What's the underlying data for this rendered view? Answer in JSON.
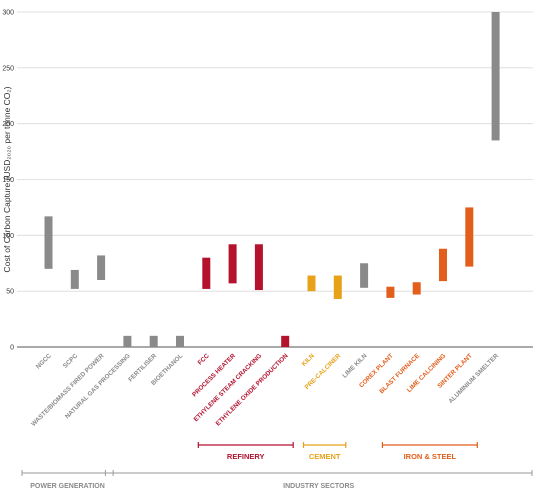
{
  "chart_data": {
    "type": "range-bar",
    "ylabel": "Cost of Carbon Capture (USD₂₀₂₀ per tonne CO₂)",
    "ylim": [
      0,
      300
    ],
    "yticks": [
      0,
      50,
      100,
      150,
      200,
      250,
      300
    ],
    "grid": true,
    "categories": [
      {
        "label": "NGCC",
        "low": 70,
        "high": 117,
        "color": "#8a8a8a"
      },
      {
        "label": "SCPC",
        "low": 52,
        "high": 69,
        "color": "#8a8a8a"
      },
      {
        "label": "WASTE/BIOMASS FIRED POWER",
        "low": 60,
        "high": 82,
        "color": "#8a8a8a"
      },
      {
        "label": "NATURAL GAS PROCESSING",
        "low": 0,
        "high": 10,
        "color": "#8a8a8a"
      },
      {
        "label": "FERTILISER",
        "low": 0,
        "high": 10,
        "color": "#8a8a8a"
      },
      {
        "label": "BIOETHANOL",
        "low": 0,
        "high": 10,
        "color": "#8a8a8a"
      },
      {
        "label": "FCC",
        "low": 52,
        "high": 80,
        "color": "#b5122e"
      },
      {
        "label": "PROCESS HEATER",
        "low": 57,
        "high": 92,
        "color": "#b5122e"
      },
      {
        "label": "ETHYLENE STEAM CRACKING",
        "low": 51,
        "high": 92,
        "color": "#b5122e"
      },
      {
        "label": "ETHYLENE OXIDE PRODUCTION",
        "low": 0,
        "high": 10,
        "color": "#b5122e"
      },
      {
        "label": "KILN",
        "low": 50,
        "high": 64,
        "color": "#e8a21a"
      },
      {
        "label": "PRE-CALCINER",
        "low": 43,
        "high": 64,
        "color": "#e8a21a"
      },
      {
        "label": "LIME KILN",
        "low": 53,
        "high": 75,
        "color": "#8a8a8a"
      },
      {
        "label": "COREX PLANT",
        "low": 44,
        "high": 54,
        "color": "#e35e1b"
      },
      {
        "label": "BLAST FURNACE",
        "low": 47,
        "high": 58,
        "color": "#e35e1b"
      },
      {
        "label": "LIME CALCINING",
        "low": 59,
        "high": 88,
        "color": "#e35e1b"
      },
      {
        "label": "SINTER PLANT",
        "low": 72,
        "high": 125,
        "color": "#e35e1b"
      },
      {
        "label": "ALUMINIUM SMELTER",
        "low": 185,
        "high": 300,
        "color": "#8a8a8a"
      }
    ],
    "groups": [
      {
        "label": "REFINERY",
        "from": 6,
        "to": 9,
        "color": "#b5122e"
      },
      {
        "label": "CEMENT",
        "from": 10,
        "to": 11,
        "color": "#e8a21a"
      },
      {
        "label": "IRON & STEEL",
        "from": 13,
        "to": 16,
        "color": "#e35e1b"
      }
    ],
    "sectors": [
      {
        "label": "POWER GENERATION",
        "from": 0,
        "to": 2
      },
      {
        "label": "INDUSTRY SECTORS",
        "from": 3,
        "to": 17
      }
    ]
  }
}
